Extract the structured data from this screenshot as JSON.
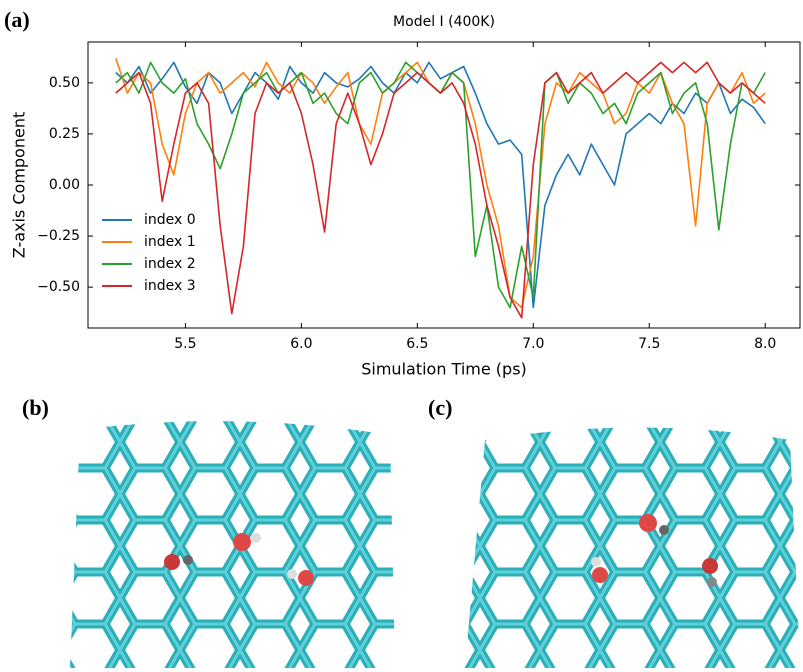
{
  "panel_labels": [
    "(a)",
    "(b)",
    "(c)"
  ],
  "chart_data": {
    "type": "line",
    "title": "Model I (400K)",
    "x_label": "Simulation Time (ps)",
    "y_label": "Z-axis Component",
    "x": [
      5.2,
      5.25,
      5.3,
      5.35,
      5.4,
      5.45,
      5.5,
      5.55,
      5.6,
      5.65,
      5.7,
      5.75,
      5.8,
      5.85,
      5.9,
      5.95,
      6.0,
      6.05,
      6.1,
      6.15,
      6.2,
      6.25,
      6.3,
      6.35,
      6.4,
      6.45,
      6.5,
      6.55,
      6.6,
      6.65,
      6.7,
      6.75,
      6.8,
      6.85,
      6.9,
      6.95,
      7.0,
      7.05,
      7.1,
      7.15,
      7.2,
      7.25,
      7.3,
      7.35,
      7.4,
      7.45,
      7.5,
      7.55,
      7.6,
      7.65,
      7.7,
      7.75,
      7.8,
      7.85,
      7.9,
      7.95,
      8.0
    ],
    "series": [
      {
        "name": "index 0",
        "color": "#1f77b4",
        "values": [
          0.55,
          0.5,
          0.58,
          0.45,
          0.52,
          0.6,
          0.48,
          0.4,
          0.55,
          0.5,
          0.35,
          0.45,
          0.55,
          0.5,
          0.42,
          0.58,
          0.5,
          0.45,
          0.55,
          0.5,
          0.48,
          0.52,
          0.58,
          0.5,
          0.45,
          0.55,
          0.5,
          0.6,
          0.52,
          0.55,
          0.58,
          0.45,
          0.3,
          0.2,
          0.22,
          0.15,
          -0.6,
          -0.1,
          0.05,
          0.15,
          0.05,
          0.2,
          0.1,
          0.0,
          0.25,
          0.3,
          0.35,
          0.3,
          0.4,
          0.35,
          0.45,
          0.4,
          0.5,
          0.35,
          0.42,
          0.38,
          0.3
        ]
      },
      {
        "name": "index 1",
        "color": "#ff7f0e",
        "values": [
          0.62,
          0.45,
          0.55,
          0.5,
          0.2,
          0.05,
          0.35,
          0.5,
          0.55,
          0.45,
          0.5,
          0.55,
          0.48,
          0.6,
          0.5,
          0.45,
          0.55,
          0.5,
          0.4,
          0.48,
          0.55,
          0.3,
          0.2,
          0.45,
          0.5,
          0.55,
          0.6,
          0.5,
          0.45,
          0.55,
          0.5,
          0.3,
          0.0,
          -0.2,
          -0.55,
          -0.6,
          -0.35,
          0.3,
          0.5,
          0.45,
          0.55,
          0.5,
          0.45,
          0.3,
          0.35,
          0.5,
          0.45,
          0.55,
          0.4,
          0.3,
          -0.2,
          0.4,
          0.5,
          0.45,
          0.55,
          0.4,
          0.45
        ]
      },
      {
        "name": "index 2",
        "color": "#2ca02c",
        "values": [
          0.5,
          0.55,
          0.45,
          0.6,
          0.5,
          0.45,
          0.52,
          0.3,
          0.2,
          0.08,
          0.25,
          0.45,
          0.5,
          0.55,
          0.45,
          0.5,
          0.55,
          0.4,
          0.45,
          0.35,
          0.3,
          0.5,
          0.55,
          0.45,
          0.5,
          0.6,
          0.55,
          0.5,
          0.45,
          0.55,
          0.5,
          -0.35,
          -0.1,
          -0.5,
          -0.6,
          -0.3,
          -0.55,
          0.5,
          0.55,
          0.4,
          0.5,
          0.45,
          0.35,
          0.4,
          0.3,
          0.45,
          0.5,
          0.55,
          0.35,
          0.45,
          0.5,
          0.3,
          -0.22,
          0.2,
          0.5,
          0.45,
          0.55
        ]
      },
      {
        "name": "index 3",
        "color": "#d62728",
        "values": [
          0.45,
          0.5,
          0.55,
          0.4,
          -0.08,
          0.2,
          0.45,
          0.5,
          0.4,
          -0.2,
          -0.63,
          -0.3,
          0.35,
          0.5,
          0.45,
          0.5,
          0.35,
          0.1,
          -0.23,
          0.3,
          0.45,
          0.3,
          0.1,
          0.25,
          0.45,
          0.5,
          0.55,
          0.5,
          0.45,
          0.5,
          0.4,
          0.2,
          -0.1,
          -0.3,
          -0.55,
          -0.65,
          0.1,
          0.5,
          0.55,
          0.45,
          0.5,
          0.55,
          0.45,
          0.5,
          0.55,
          0.5,
          0.55,
          0.6,
          0.55,
          0.6,
          0.55,
          0.6,
          0.5,
          0.45,
          0.5,
          0.45,
          0.4
        ]
      }
    ],
    "xlim": [
      5.08,
      8.15
    ],
    "xticks": [
      5.5,
      {
        "value": 6,
        "label": "6.0"
      },
      6.5,
      {
        "value": 7,
        "label": "7.0"
      },
      7.5,
      {
        "value": 8,
        "label": "8.0"
      }
    ],
    "ylim": [
      -0.7,
      0.7
    ],
    "yticks": [
      {
        "value": -0.5,
        "label": "−0.50"
      },
      {
        "value": -0.25,
        "label": "−0.25"
      },
      {
        "value": 0,
        "label": "0.00"
      },
      {
        "value": 0.25,
        "label": "0.25"
      },
      {
        "value": 0.5,
        "label": "0.50"
      }
    ],
    "legend": "lower left"
  }
}
